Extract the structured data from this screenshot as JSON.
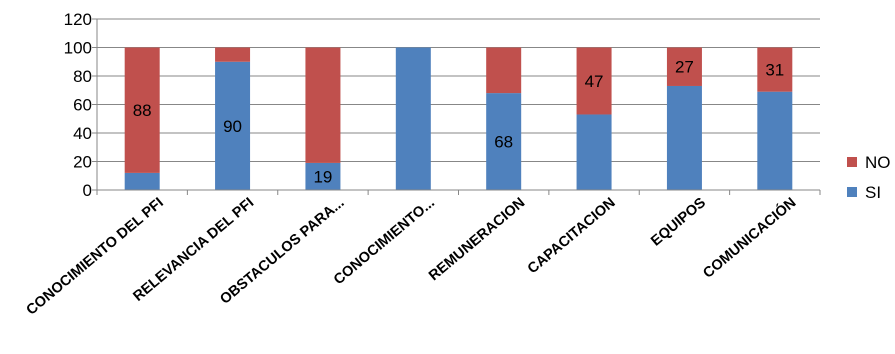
{
  "chart_data": {
    "type": "bar",
    "stacked": true,
    "categories": [
      "CONOCIMIENTO DEL PFI",
      "RELEVANCIA DEL PFI",
      "OBSTACULOS PARA...",
      "CONOCIMIENTO...",
      "REMUNERACION",
      "CAPACITACION",
      "EQUIPOS",
      "COMUNICACIÓN"
    ],
    "series": [
      {
        "name": "SI",
        "color": "#4f81bd",
        "values": [
          12,
          90,
          19,
          100,
          68,
          53,
          73,
          69
        ]
      },
      {
        "name": "NO",
        "color": "#c0504d",
        "values": [
          88,
          10,
          81,
          0,
          32,
          47,
          27,
          31
        ]
      }
    ],
    "data_labels": [
      {
        "category_index": 0,
        "series": "NO",
        "text": "88"
      },
      {
        "category_index": 1,
        "series": "SI",
        "text": "90"
      },
      {
        "category_index": 2,
        "series": "SI",
        "text": "19"
      },
      {
        "category_index": 4,
        "series": "SI",
        "text": "68"
      },
      {
        "category_index": 5,
        "series": "NO",
        "text": "47"
      },
      {
        "category_index": 6,
        "series": "NO",
        "text": "27"
      },
      {
        "category_index": 7,
        "series": "NO",
        "text": "31"
      }
    ],
    "yticks": [
      0,
      20,
      40,
      60,
      80,
      100,
      120
    ],
    "ylim": [
      0,
      120
    ],
    "grid": true,
    "legend_position": "right",
    "title": "",
    "xlabel": "",
    "ylabel": ""
  }
}
